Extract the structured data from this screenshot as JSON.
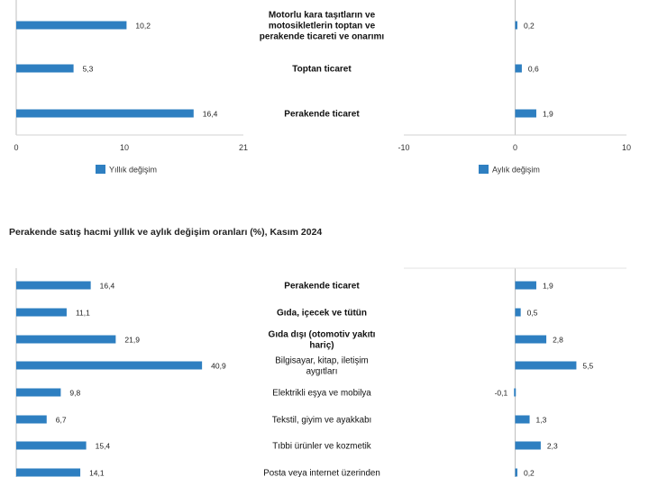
{
  "chart_data": [
    {
      "type": "bar",
      "orientation": "horizontal",
      "categories": [
        "Motorlu kara taşıtların ve motosikletlerin toptan ve perakende ticareti ve onarımı",
        "Toptan ticaret",
        "Perakende ticaret"
      ],
      "category_lines": [
        [
          "Motorlu kara taşıtların ve",
          "motosikletlerin toptan ve",
          "perakende ticareti ve onarımı"
        ],
        [
          "Toptan ticaret"
        ],
        [
          "Perakende ticaret"
        ]
      ],
      "bold": [
        true,
        true,
        true
      ],
      "series": [
        {
          "name": "Yıllık değişim",
          "values": [
            10.2,
            5.3,
            16.4
          ],
          "labels": [
            "10,2",
            "5,3",
            "16,4"
          ],
          "xlim": [
            0,
            21
          ],
          "ticks": [
            "0",
            "10",
            "21"
          ],
          "tick_values": [
            0,
            10,
            21
          ]
        },
        {
          "name": "Aylık değişim",
          "values": [
            0.2,
            0.6,
            1.9
          ],
          "labels": [
            "0,2",
            "0,6",
            "1,9"
          ],
          "xlim": [
            -10,
            10
          ],
          "ticks": [
            "-10",
            "0",
            "10"
          ],
          "tick_values": [
            -10,
            0,
            10
          ]
        }
      ],
      "color": "#2e7fc1"
    },
    {
      "type": "bar",
      "orientation": "horizontal",
      "title": "Perakende satış hacmi yıllık ve aylık değişim oranları (%), Kasım 2024",
      "categories": [
        "Perakende ticaret",
        "Gıda, içecek ve tütün",
        "Gıda dışı (otomotiv yakıtı hariç)",
        "Bilgisayar, kitap, iletişim aygıtları",
        "Elektrikli eşya ve mobilya",
        "Tekstil, giyim ve ayakkabı",
        "Tıbbi ürünler ve kozmetik",
        "Posta veya internet üzerinden"
      ],
      "category_lines": [
        [
          "Perakende ticaret"
        ],
        [
          "Gıda, içecek ve tütün"
        ],
        [
          "Gıda dışı (otomotiv yakıtı",
          "hariç)"
        ],
        [
          "Bilgisayar, kitap, iletişim",
          "aygıtları"
        ],
        [
          "Elektrikli eşya ve mobilya"
        ],
        [
          "Tekstil, giyim ve ayakkabı"
        ],
        [
          "Tıbbi ürünler ve kozmetik"
        ],
        [
          "Posta veya internet üzerinden"
        ]
      ],
      "bold": [
        true,
        true,
        true,
        false,
        false,
        false,
        false,
        false
      ],
      "series": [
        {
          "name": "Yıllık değişim",
          "values": [
            16.4,
            11.1,
            21.9,
            40.9,
            9.8,
            6.7,
            15.4,
            14.1
          ],
          "labels": [
            "16,4",
            "11,1",
            "21,9",
            "40,9",
            "9,8",
            "6,7",
            "15,4",
            "14,1"
          ],
          "xlim": [
            0,
            50
          ]
        },
        {
          "name": "Aylık değişim",
          "values": [
            1.9,
            0.5,
            2.8,
            5.5,
            -0.1,
            1.3,
            2.3,
            0.2
          ],
          "labels": [
            "1,9",
            "0,5",
            "2,8",
            "5,5",
            "-0,1",
            "1,3",
            "2,3",
            "0,2"
          ],
          "xlim": [
            -10,
            10
          ]
        }
      ],
      "color": "#2e7fc1"
    }
  ]
}
